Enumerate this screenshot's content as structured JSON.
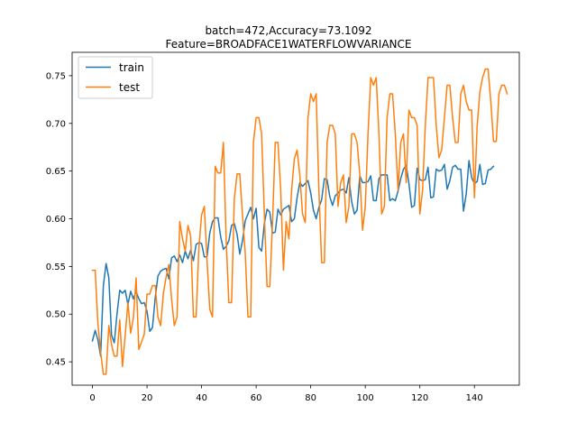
{
  "chart_data": {
    "type": "line",
    "title_lines": [
      "batch=472,Accuracy=73.1092",
      "Feature=BROADFACE1WATERFLOWVARIANCE"
    ],
    "xlabel": "",
    "ylabel": "",
    "xlim": [
      -7.45,
      156.45
    ],
    "ylim": [
      0.4255,
      0.7745
    ],
    "xticks": [
      0,
      20,
      40,
      60,
      80,
      100,
      120,
      140
    ],
    "yticks": [
      0.45,
      0.5,
      0.55,
      0.6,
      0.65,
      0.7,
      0.75
    ],
    "ytick_labels": [
      "0.45",
      "0.50",
      "0.55",
      "0.60",
      "0.65",
      "0.70",
      "0.75"
    ],
    "grid": false,
    "legend": "top-left",
    "series": [
      {
        "name": "train",
        "color": "#1f77b4",
        "x_start": 0,
        "values": [
          0.472,
          0.483,
          0.473,
          0.456,
          0.53,
          0.553,
          0.538,
          0.478,
          0.47,
          0.5,
          0.525,
          0.522,
          0.525,
          0.51,
          0.524,
          0.516,
          0.524,
          0.516,
          0.511,
          0.512,
          0.503,
          0.482,
          0.486,
          0.517,
          0.54,
          0.545,
          0.547,
          0.548,
          0.537,
          0.559,
          0.561,
          0.555,
          0.562,
          0.554,
          0.566,
          0.558,
          0.567,
          0.556,
          0.573,
          0.575,
          0.574,
          0.56,
          0.56,
          0.585,
          0.597,
          0.601,
          0.601,
          0.581,
          0.568,
          0.571,
          0.577,
          0.593,
          0.595,
          0.584,
          0.563,
          0.577,
          0.598,
          0.605,
          0.612,
          0.6,
          0.611,
          0.57,
          0.566,
          0.595,
          0.61,
          0.607,
          0.585,
          0.586,
          0.61,
          0.604,
          0.61,
          0.612,
          0.614,
          0.597,
          0.6,
          0.622,
          0.638,
          0.634,
          0.637,
          0.64,
          0.627,
          0.609,
          0.6,
          0.612,
          0.62,
          0.642,
          0.641,
          0.623,
          0.614,
          0.624,
          0.627,
          0.63,
          0.631,
          0.627,
          0.643,
          0.618,
          0.605,
          0.609,
          0.645,
          0.638,
          0.638,
          0.639,
          0.645,
          0.619,
          0.619,
          0.642,
          0.646,
          0.646,
          0.646,
          0.619,
          0.621,
          0.619,
          0.629,
          0.642,
          0.652,
          0.656,
          0.637,
          0.612,
          0.614,
          0.653,
          0.641,
          0.64,
          0.641,
          0.654,
          0.622,
          0.623,
          0.652,
          0.65,
          0.651,
          0.657,
          0.631,
          0.64,
          0.654,
          0.656,
          0.652,
          0.652,
          0.608,
          0.626,
          0.661,
          0.643,
          0.637,
          0.639,
          0.657,
          0.636,
          0.637,
          0.651,
          0.652,
          0.655
        ]
      },
      {
        "name": "test",
        "color": "#ff7f0e",
        "x_start": 0,
        "values": [
          0.546,
          0.546,
          0.49,
          0.46,
          0.437,
          0.437,
          0.488,
          0.468,
          0.456,
          0.456,
          0.494,
          0.445,
          0.478,
          0.512,
          0.48,
          0.496,
          0.538,
          0.463,
          0.471,
          0.479,
          0.521,
          0.521,
          0.53,
          0.53,
          0.497,
          0.488,
          0.522,
          0.539,
          0.552,
          0.516,
          0.488,
          0.497,
          0.597,
          0.579,
          0.566,
          0.593,
          0.582,
          0.497,
          0.497,
          0.569,
          0.604,
          0.613,
          0.556,
          0.505,
          0.497,
          0.655,
          0.648,
          0.648,
          0.68,
          0.578,
          0.512,
          0.512,
          0.621,
          0.647,
          0.647,
          0.603,
          0.564,
          0.497,
          0.497,
          0.68,
          0.706,
          0.706,
          0.689,
          0.605,
          0.529,
          0.529,
          0.596,
          0.68,
          0.68,
          0.63,
          0.546,
          0.597,
          0.579,
          0.63,
          0.663,
          0.672,
          0.646,
          0.605,
          0.596,
          0.706,
          0.731,
          0.723,
          0.731,
          0.63,
          0.554,
          0.554,
          0.68,
          0.698,
          0.698,
          0.689,
          0.613,
          0.638,
          0.646,
          0.596,
          0.613,
          0.689,
          0.689,
          0.68,
          0.646,
          0.588,
          0.613,
          0.689,
          0.748,
          0.74,
          0.748,
          0.689,
          0.605,
          0.613,
          0.706,
          0.731,
          0.731,
          0.689,
          0.63,
          0.68,
          0.689,
          0.638,
          0.714,
          0.706,
          0.706,
          0.698,
          0.605,
          0.63,
          0.698,
          0.748,
          0.748,
          0.748,
          0.698,
          0.664,
          0.672,
          0.706,
          0.74,
          0.74,
          0.706,
          0.68,
          0.68,
          0.731,
          0.74,
          0.723,
          0.714,
          0.714,
          0.622,
          0.697,
          0.733,
          0.748,
          0.757,
          0.757,
          0.723,
          0.681,
          0.681,
          0.731,
          0.74,
          0.74,
          0.731
        ]
      }
    ]
  }
}
